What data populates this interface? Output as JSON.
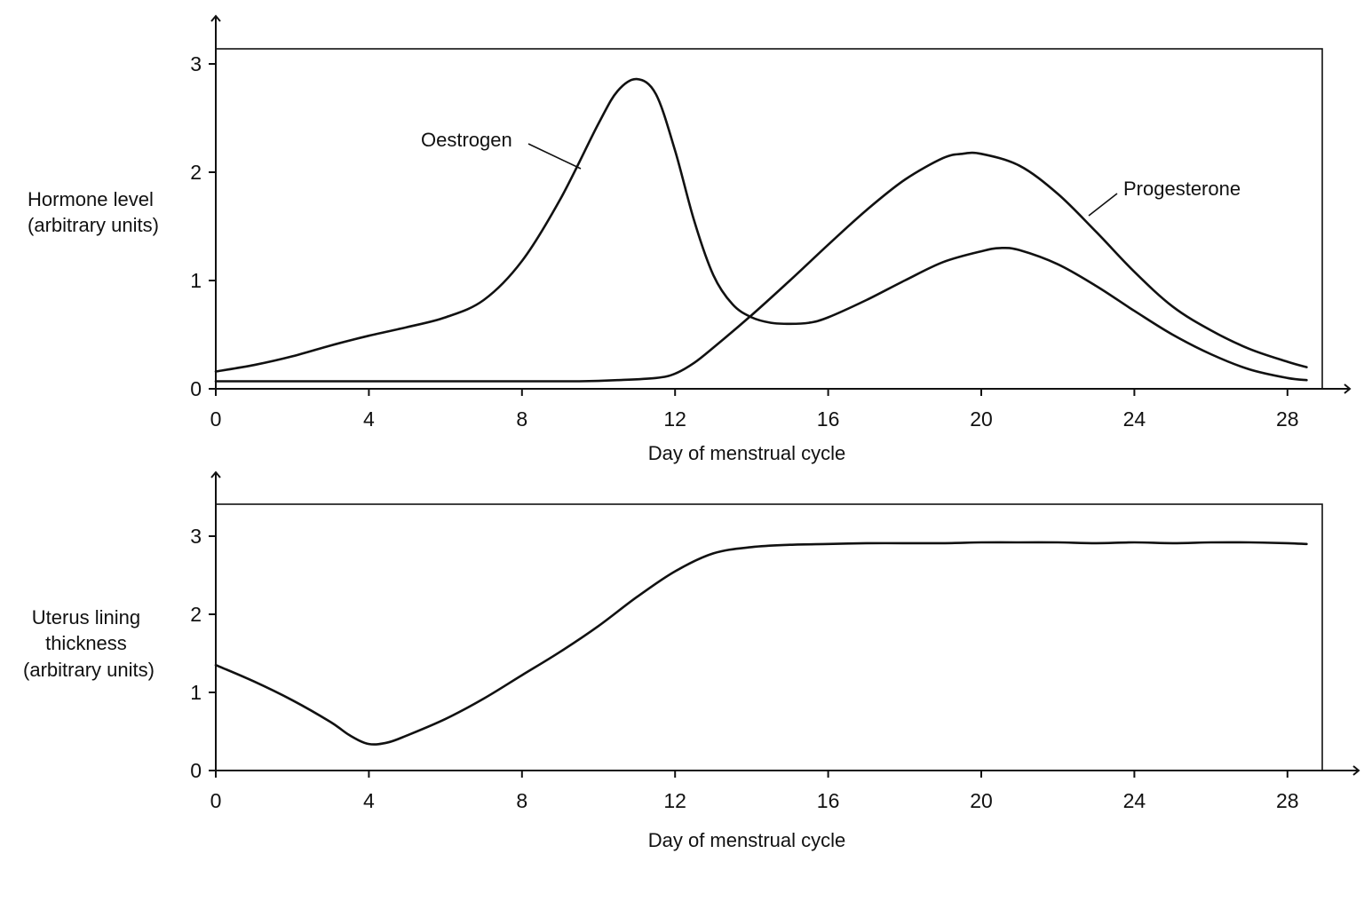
{
  "chart_data": [
    {
      "type": "line",
      "title": "",
      "xlabel": "Day of menstrual cycle",
      "ylabel": [
        "Hormone level",
        "(arbitrary units)"
      ],
      "xlim": [
        0,
        28.8
      ],
      "ylim": [
        0,
        3.15
      ],
      "x_ticks": [
        "0",
        "4",
        "8",
        "12",
        "16",
        "20",
        "24",
        "28"
      ],
      "y_ticks": [
        "0",
        "1",
        "2",
        "3"
      ],
      "grid": false,
      "series": [
        {
          "name": "Oestrogen",
          "x": [
            0,
            1,
            2,
            3,
            4,
            5,
            6,
            7,
            8,
            9,
            10,
            10.5,
            11,
            11.5,
            12,
            12.5,
            13,
            13.5,
            14,
            14.5,
            15,
            15.5,
            16,
            17,
            18,
            19,
            20,
            20.5,
            21,
            22,
            23,
            24,
            25,
            26,
            27,
            28,
            28.5
          ],
          "y": [
            0.16,
            0.22,
            0.3,
            0.4,
            0.49,
            0.57,
            0.66,
            0.82,
            1.18,
            1.75,
            2.45,
            2.75,
            2.86,
            2.72,
            2.2,
            1.55,
            1.05,
            0.78,
            0.66,
            0.61,
            0.6,
            0.61,
            0.66,
            0.82,
            1.0,
            1.17,
            1.27,
            1.3,
            1.28,
            1.15,
            0.95,
            0.72,
            0.5,
            0.32,
            0.18,
            0.1,
            0.08
          ]
        },
        {
          "name": "Progesterone",
          "x": [
            0,
            2,
            4,
            6,
            8,
            9.5,
            10.5,
            11.5,
            12,
            12.5,
            13,
            14,
            15,
            16,
            17,
            18,
            19,
            19.5,
            20,
            21,
            22,
            23,
            24,
            25,
            26,
            27,
            28,
            28.5
          ],
          "y": [
            0.07,
            0.07,
            0.07,
            0.07,
            0.07,
            0.07,
            0.08,
            0.1,
            0.14,
            0.24,
            0.38,
            0.68,
            1.0,
            1.33,
            1.65,
            1.93,
            2.13,
            2.17,
            2.17,
            2.06,
            1.8,
            1.45,
            1.08,
            0.76,
            0.54,
            0.37,
            0.25,
            0.2
          ]
        }
      ]
    },
    {
      "type": "line",
      "title": "",
      "xlabel": "Day of menstrual cycle",
      "ylabel": [
        "Uterus lining",
        "thickness",
        "(arbitrary units)"
      ],
      "xlim": [
        0,
        28.8
      ],
      "ylim": [
        0,
        3.4
      ],
      "x_ticks": [
        "0",
        "4",
        "8",
        "12",
        "16",
        "20",
        "24",
        "28"
      ],
      "y_ticks": [
        "0",
        "1",
        "2",
        "3"
      ],
      "grid": false,
      "series": [
        {
          "name": "",
          "x": [
            0,
            1,
            2,
            3,
            3.5,
            4,
            4.5,
            5,
            6,
            7,
            8,
            9,
            10,
            11,
            12,
            13,
            14,
            15,
            16,
            17,
            18,
            19,
            20,
            21,
            22,
            23,
            24,
            25,
            26,
            27,
            28,
            28.5
          ],
          "y": [
            1.35,
            1.14,
            0.9,
            0.62,
            0.45,
            0.34,
            0.36,
            0.45,
            0.66,
            0.92,
            1.22,
            1.52,
            1.85,
            2.22,
            2.55,
            2.78,
            2.86,
            2.89,
            2.9,
            2.91,
            2.91,
            2.91,
            2.92,
            2.92,
            2.92,
            2.91,
            2.92,
            2.91,
            2.92,
            2.92,
            2.91,
            2.9
          ]
        }
      ]
    }
  ]
}
